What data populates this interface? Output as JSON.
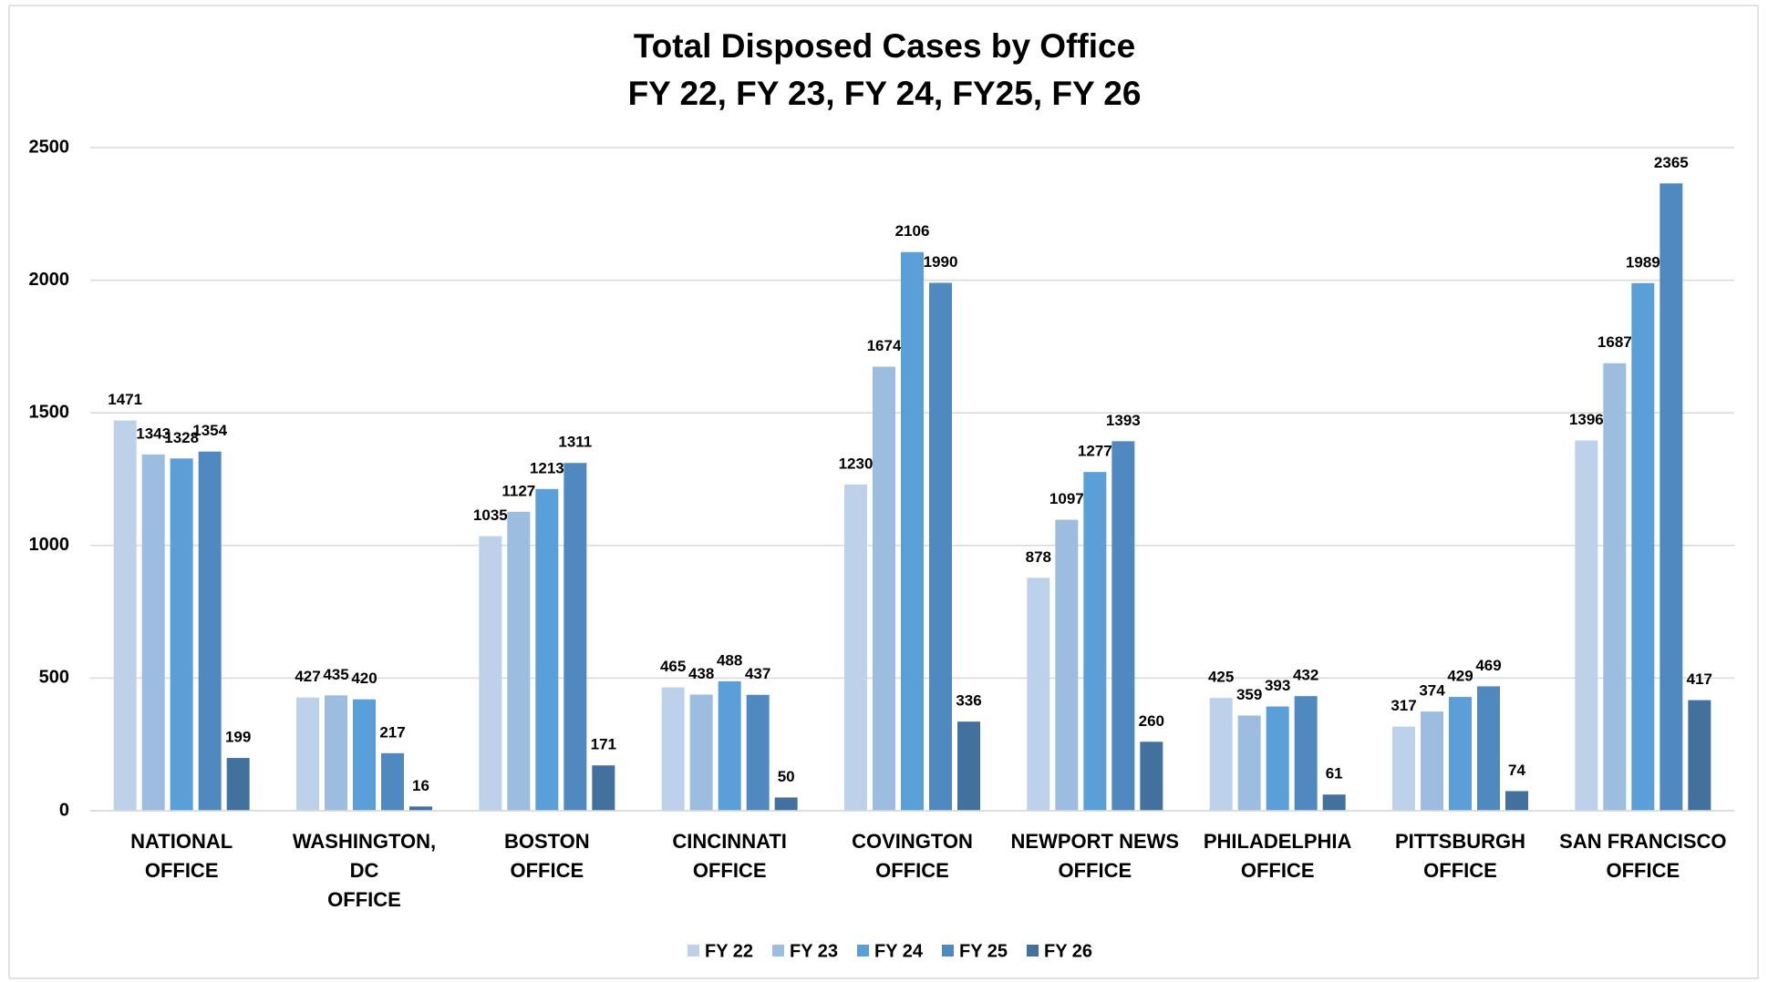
{
  "chart_data": {
    "type": "bar",
    "title": [
      "Total Disposed Cases by Office",
      "FY 22, FY 23, FY 24, FY25, FY 26"
    ],
    "categories": [
      [
        "NATIONAL",
        "OFFICE"
      ],
      [
        "WASHINGTON,",
        "DC",
        "OFFICE"
      ],
      [
        "BOSTON",
        "OFFICE"
      ],
      [
        "CINCINNATI",
        "OFFICE"
      ],
      [
        "COVINGTON",
        "OFFICE"
      ],
      [
        "NEWPORT NEWS",
        "OFFICE"
      ],
      [
        "PHILADELPHIA",
        "OFFICE"
      ],
      [
        "PITTSBURGH",
        "OFFICE"
      ],
      [
        "SAN FRANCISCO",
        "OFFICE"
      ]
    ],
    "series": [
      {
        "name": "FY 22",
        "color": "#bdd1eb",
        "values": [
          1471,
          427,
          1035,
          465,
          1230,
          878,
          425,
          317,
          1396
        ]
      },
      {
        "name": "FY 23",
        "color": "#9dbde0",
        "values": [
          1343,
          435,
          1127,
          438,
          1674,
          1097,
          359,
          374,
          1687
        ]
      },
      {
        "name": "FY 24",
        "color": "#5b9fd8",
        "values": [
          1328,
          420,
          1213,
          488,
          2106,
          1277,
          393,
          429,
          1989
        ]
      },
      {
        "name": "FY 25",
        "color": "#4f89bf",
        "values": [
          1354,
          217,
          1311,
          437,
          1990,
          1393,
          432,
          469,
          2365
        ]
      },
      {
        "name": "FY 26",
        "color": "#41719c",
        "values": [
          199,
          16,
          171,
          50,
          336,
          260,
          61,
          74,
          417
        ]
      }
    ],
    "ylim": [
      0,
      2500
    ],
    "yticks": [
      0,
      500,
      1000,
      1500,
      2000,
      2500
    ],
    "grid": true,
    "legend": "bottom"
  }
}
